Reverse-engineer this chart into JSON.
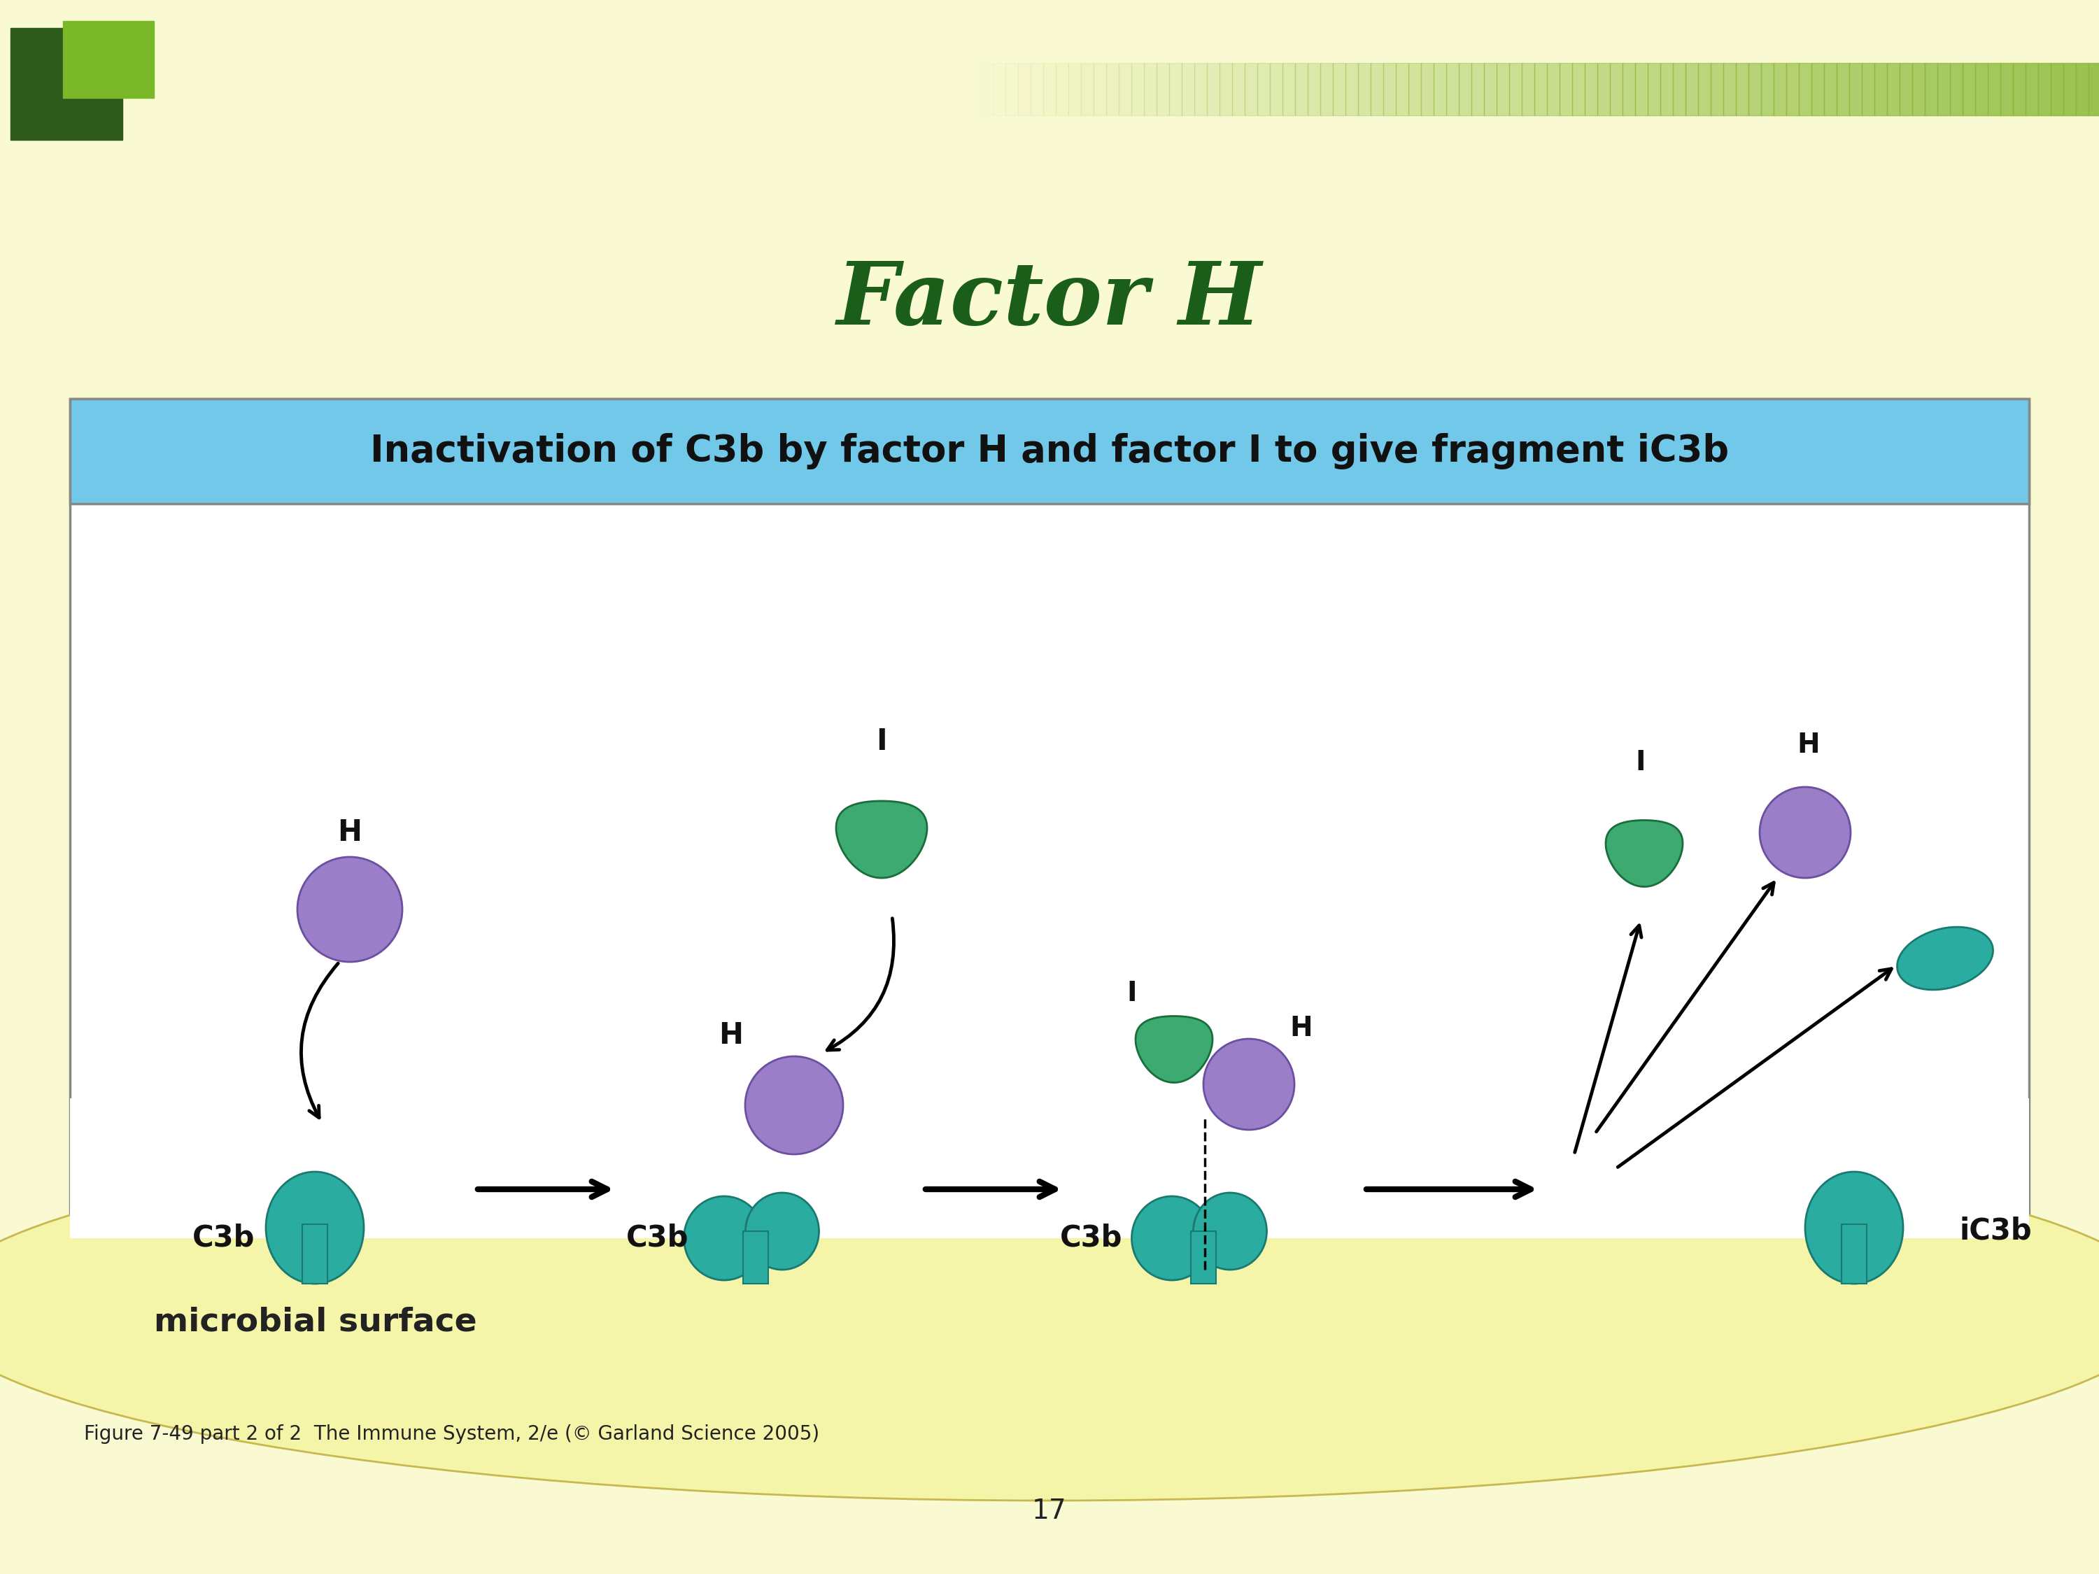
{
  "bg_color": "#FAFAD2",
  "title": "Factor H",
  "title_color": "#1a5e1a",
  "title_fontsize": 90,
  "slide_bg": "#FAFAD2",
  "box_bg": "#FFFFFF",
  "header_bg": "#72C8E8",
  "header_text": "Inactivation of C3b by factor H and factor I to give fragment iC3b",
  "header_fontsize": 38,
  "teal_color": "#2AADA0",
  "purple_color": "#9B7EC8",
  "green_color": "#3DAA72",
  "surface_color": "#F5F5AA",
  "caption": "Figure 7-49 part 2 of 2  The Immune System, 2/e (© Garland Science 2005)",
  "page_number": "17",
  "microbial_surface_text": "microbial surface"
}
